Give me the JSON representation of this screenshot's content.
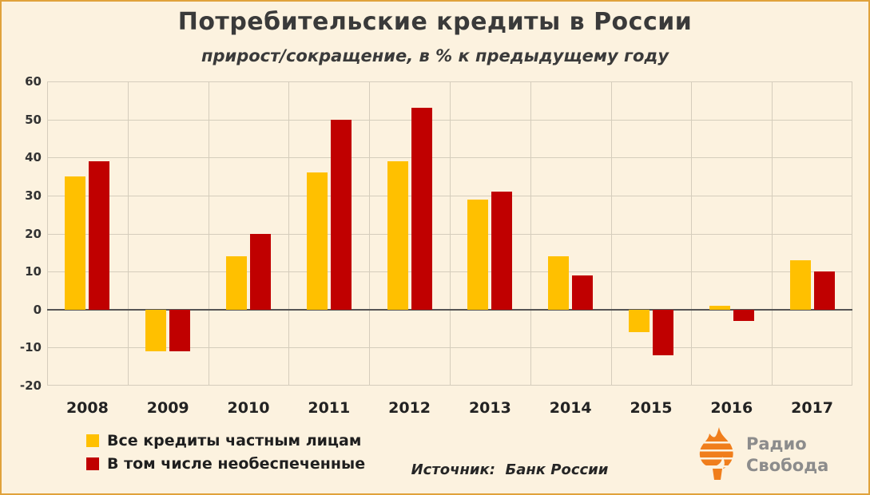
{
  "title": "Потребительские кредиты в России",
  "subtitle": "прирост/сокращение, в % к предыдущему году",
  "source": "Источник:  Банк России",
  "logo": {
    "line1": "Радио",
    "line2": "Свобода",
    "flame_color": "#F07E1C"
  },
  "legend": [
    {
      "label": "Все кредиты частным лицам",
      "color": "#FFC000"
    },
    {
      "label": "В том числе необеспеченные",
      "color": "#C00000"
    }
  ],
  "colors": {
    "background": "#FCF2DF",
    "frame_border": "#E0A23B",
    "grid": "#D5CDBC",
    "zero_line": "#555555",
    "title_text": "#3A3A3A"
  },
  "chart_data": {
    "type": "bar",
    "title": "Потребительские кредиты в России",
    "subtitle": "прирост/сокращение, в % к предыдущему году",
    "categories": [
      "2008",
      "2009",
      "2010",
      "2011",
      "2012",
      "2013",
      "2014",
      "2015",
      "2016",
      "2017"
    ],
    "series": [
      {
        "name": "Все кредиты частным лицам",
        "color": "#FFC000",
        "values": [
          35,
          -11,
          14,
          36,
          39,
          29,
          14,
          -6,
          1,
          13
        ]
      },
      {
        "name": "В том числе необеспеченные",
        "color": "#C00000",
        "values": [
          39,
          -11,
          20,
          50,
          53,
          31,
          9,
          -12,
          -3,
          10
        ]
      }
    ],
    "xlabel": "",
    "ylabel": "",
    "ylim": [
      -20,
      60
    ],
    "ytick_step": 10,
    "grid": true,
    "legend_position": "bottom-left"
  }
}
